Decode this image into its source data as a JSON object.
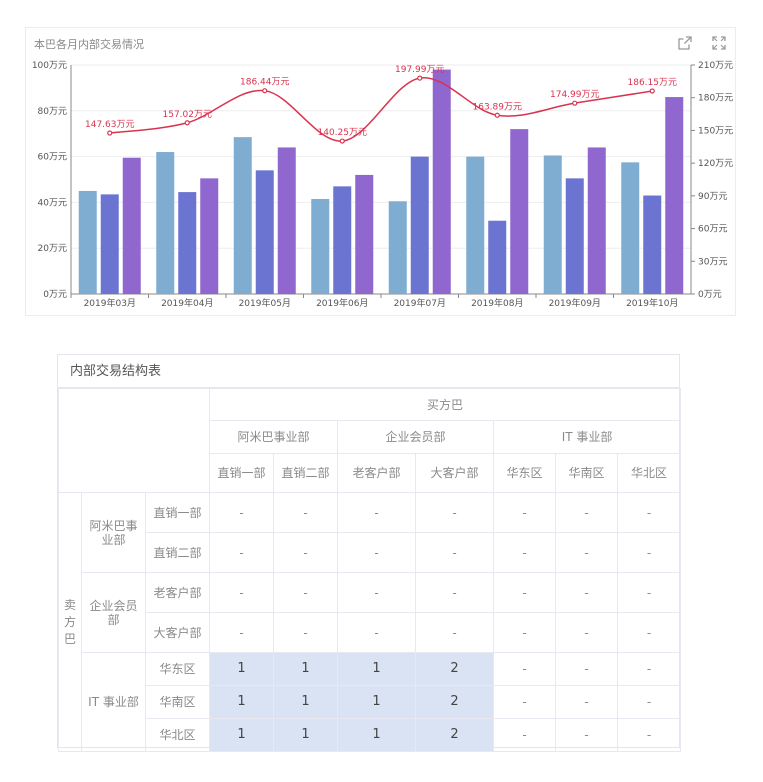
{
  "chart_card": {
    "title": "本巴各月内部交易情况",
    "share_icon": "share-icon",
    "expand_icon": "expand-icon"
  },
  "chart_data": {
    "type": "bar",
    "title": "本巴各月内部交易情况",
    "categories": [
      "2019年03月",
      "2019年04月",
      "2019年05月",
      "2019年06月",
      "2019年07月",
      "2019年08月",
      "2019年09月",
      "2019年10月"
    ],
    "series": [
      {
        "type": "bar",
        "axis": "left",
        "color": "#7fadd2",
        "values": [
          45,
          62,
          68.5,
          41.5,
          40.5,
          60,
          60.5,
          57.5
        ]
      },
      {
        "type": "bar",
        "axis": "left",
        "color": "#6b74d0",
        "values": [
          43.5,
          44.5,
          54,
          47,
          60,
          32,
          50.5,
          43
        ]
      },
      {
        "type": "bar",
        "axis": "left",
        "color": "#9066cf",
        "values": [
          59.5,
          50.5,
          64,
          52,
          98,
          72,
          64,
          86
        ]
      },
      {
        "type": "line",
        "axis": "right",
        "color": "#d9334f",
        "values": [
          147.63,
          157.02,
          186.44,
          140.25,
          197.99,
          163.89,
          174.99,
          186.15
        ],
        "labels": [
          "147.63万元",
          "157.02万元",
          "186.44万元",
          "140.25万元",
          "197.99万元",
          "163.89万元",
          "174.99万元",
          "186.15万元"
        ]
      }
    ],
    "y_left": {
      "min": 0,
      "max": 100,
      "ticks": [
        "0万元",
        "20万元",
        "40万元",
        "60万元",
        "80万元",
        "100万元"
      ]
    },
    "y_right": {
      "min": 0,
      "max": 210,
      "ticks": [
        "0万元",
        "30万元",
        "60万元",
        "90万元",
        "120万元",
        "150万元",
        "180万元",
        "210万元"
      ]
    },
    "grid": true,
    "legend": "none"
  },
  "table": {
    "title": "内部交易结构表",
    "buyer_label": "买方巴",
    "seller_label": "卖方巴",
    "buyer_groups": [
      {
        "name": "阿米巴事业部",
        "units": [
          "直销一部",
          "直销二部"
        ]
      },
      {
        "name": "企业会员部",
        "units": [
          "老客户部",
          "大客户部"
        ]
      },
      {
        "name": "IT 事业部",
        "units": [
          "华东区",
          "华南区",
          "华北区"
        ]
      }
    ],
    "seller_groups": [
      {
        "name": "阿米巴事业部",
        "units": [
          {
            "name": "直销一部",
            "cells": [
              "-",
              "-",
              "-",
              "-",
              "-",
              "-",
              "-"
            ]
          },
          {
            "name": "直销二部",
            "cells": [
              "-",
              "-",
              "-",
              "-",
              "-",
              "-",
              "-"
            ]
          }
        ]
      },
      {
        "name": "企业会员部",
        "units": [
          {
            "name": "老客户部",
            "cells": [
              "-",
              "-",
              "-",
              "-",
              "-",
              "-",
              "-"
            ]
          },
          {
            "name": "大客户部",
            "cells": [
              "-",
              "-",
              "-",
              "-",
              "-",
              "-",
              "-"
            ]
          }
        ]
      },
      {
        "name": "IT 事业部",
        "units": [
          {
            "name": "华东区",
            "cells": [
              "1",
              "1",
              "1",
              "2",
              "-",
              "-",
              "-"
            ]
          },
          {
            "name": "华南区",
            "cells": [
              "1",
              "1",
              "1",
              "2",
              "-",
              "-",
              "-"
            ]
          },
          {
            "name": "华北区",
            "cells": [
              "1",
              "1",
              "1",
              "2",
              "-",
              "-",
              "-"
            ]
          }
        ]
      }
    ],
    "highlight_color": "#d9e3f3"
  }
}
